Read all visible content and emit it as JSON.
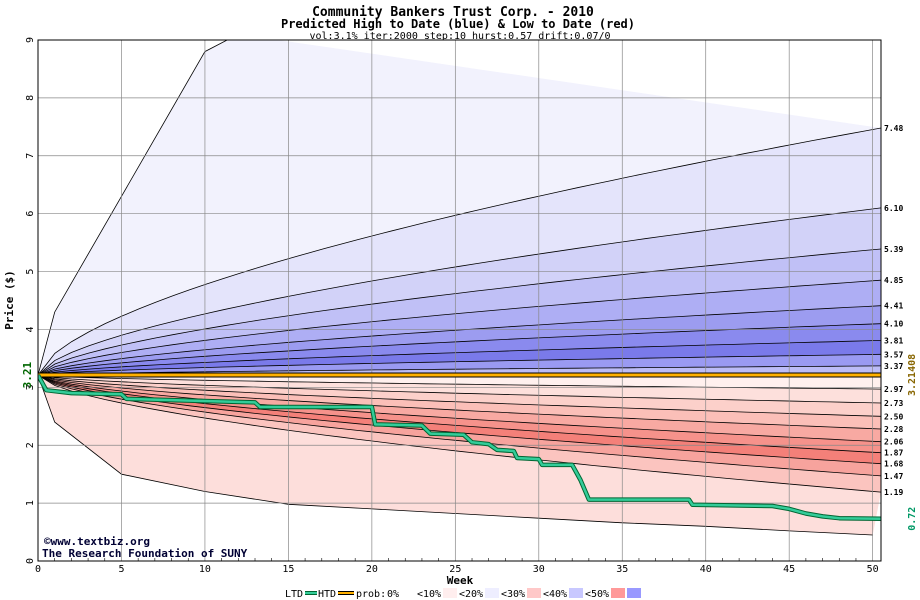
{
  "chart_data": {
    "type": "area",
    "title": "Community Bankers Trust Corp. - 2010",
    "subtitle": "Predicted High to Date (blue) &  Low to Date (red)",
    "params": "vol:3.1% iter:2000 step:10 hurst:0.57 drift:0.07/0",
    "xlabel": "Week",
    "ylabel": "Price ($)",
    "xlim": [
      0,
      50.5
    ],
    "ylim": [
      0,
      9
    ],
    "x_ticks": [
      0,
      5,
      10,
      15,
      20,
      25,
      30,
      35,
      40,
      45,
      50
    ],
    "y_ticks": [
      0,
      1,
      2,
      3,
      4,
      5,
      6,
      7,
      8,
      9
    ],
    "grid": true,
    "start_price": 3.21,
    "start_label": "3.21",
    "current_value_label": "3.21408",
    "current_value": 3.21408,
    "htd_end_label": "0.72",
    "upper_percentiles": [
      {
        "label": "7.48",
        "end": 7.48
      },
      {
        "label": "6.10",
        "end": 6.1
      },
      {
        "label": "5.39",
        "end": 5.39
      },
      {
        "label": "4.85",
        "end": 4.85
      },
      {
        "label": "4.41",
        "end": 4.41
      },
      {
        "label": "4.10",
        "end": 4.1
      },
      {
        "label": "3.81",
        "end": 3.81
      },
      {
        "label": "3.57",
        "end": 3.57
      },
      {
        "label": "3.37",
        "end": 3.37
      }
    ],
    "lower_percentiles": [
      {
        "label": "2.97",
        "end": 2.97
      },
      {
        "label": "2.73",
        "end": 2.73
      },
      {
        "label": "2.50",
        "end": 2.5
      },
      {
        "label": "2.28",
        "end": 2.28
      },
      {
        "label": "2.06",
        "end": 2.06
      },
      {
        "label": "1.87",
        "end": 1.87
      },
      {
        "label": "1.68",
        "end": 1.68
      },
      {
        "label": "1.47",
        "end": 1.47
      },
      {
        "label": "1.19",
        "end": 1.19
      }
    ],
    "outer_upper": [
      [
        0,
        3.21
      ],
      [
        1,
        4.3
      ],
      [
        5,
        6.3
      ],
      [
        10,
        8.8
      ],
      [
        12,
        9.1
      ]
    ],
    "outer_lower": [
      [
        0,
        3.21
      ],
      [
        1,
        2.4
      ],
      [
        5,
        1.5
      ],
      [
        10,
        1.2
      ],
      [
        15,
        0.98
      ],
      [
        20,
        0.9
      ],
      [
        25,
        0.82
      ],
      [
        30,
        0.74
      ],
      [
        35,
        0.66
      ],
      [
        40,
        0.6
      ],
      [
        45,
        0.52
      ],
      [
        50,
        0.45
      ]
    ],
    "htd_series": {
      "name": "HTD",
      "points": [
        [
          0,
          3.21
        ],
        [
          0.5,
          2.95
        ],
        [
          2,
          2.9
        ],
        [
          5,
          2.88
        ],
        [
          5.3,
          2.8
        ],
        [
          8,
          2.78
        ],
        [
          13,
          2.74
        ],
        [
          13.3,
          2.66
        ],
        [
          20,
          2.66
        ],
        [
          20.2,
          2.36
        ],
        [
          23,
          2.34
        ],
        [
          23.5,
          2.2
        ],
        [
          25.5,
          2.18
        ],
        [
          26,
          2.05
        ],
        [
          27,
          2.02
        ],
        [
          27.5,
          1.92
        ],
        [
          28.5,
          1.9
        ],
        [
          28.7,
          1.78
        ],
        [
          30,
          1.76
        ],
        [
          30.2,
          1.66
        ],
        [
          32,
          1.66
        ],
        [
          32.5,
          1.4
        ],
        [
          33,
          1.06
        ],
        [
          39,
          1.06
        ],
        [
          39.2,
          0.97
        ],
        [
          44,
          0.95
        ],
        [
          45,
          0.9
        ],
        [
          46,
          0.82
        ],
        [
          47,
          0.77
        ],
        [
          48,
          0.74
        ],
        [
          50.5,
          0.73
        ]
      ]
    },
    "band_fills_blue": [
      "#f2f2fd",
      "#e4e4fb",
      "#d2d2f8",
      "#c0c0f6",
      "#aeaef4",
      "#9c9cf0",
      "#8a8aee",
      "#7a7aea",
      "#9a9af2",
      "#bcbcf7"
    ],
    "band_fills_red": [
      "#fff0ee",
      "#fde0dc",
      "#fcd0ca",
      "#fbbfb8",
      "#f8a9a2",
      "#f6928b",
      "#f48079",
      "#f7a39d",
      "#fbc4bf",
      "#fddedb"
    ],
    "credit_line1": "©www.textbiz.org",
    "credit_line2": "The Research Foundation of SUNY",
    "legend": {
      "ltd": "LTD",
      "htd": "HTD",
      "prob": "prob:",
      "items": [
        {
          "label": "0%",
          "color": "#ffffff"
        },
        {
          "label": "<10%",
          "color": "#ffeeee"
        },
        {
          "label": "<20%",
          "color": "#eeeeff"
        },
        {
          "label": "<30%",
          "color": "#ffc8c8"
        },
        {
          "label": "<40%",
          "color": "#c8c8ff"
        },
        {
          "label": "<50%",
          "color": "#ff9999"
        },
        {
          "label": "",
          "color": "#9999ff"
        }
      ]
    },
    "colors": {
      "htd_line": "#33cc99",
      "htd_outline": "#006633",
      "current_line": "#ffb000",
      "start_label": "#006600",
      "current_label": "#886600",
      "htd_label": "#009966"
    }
  }
}
